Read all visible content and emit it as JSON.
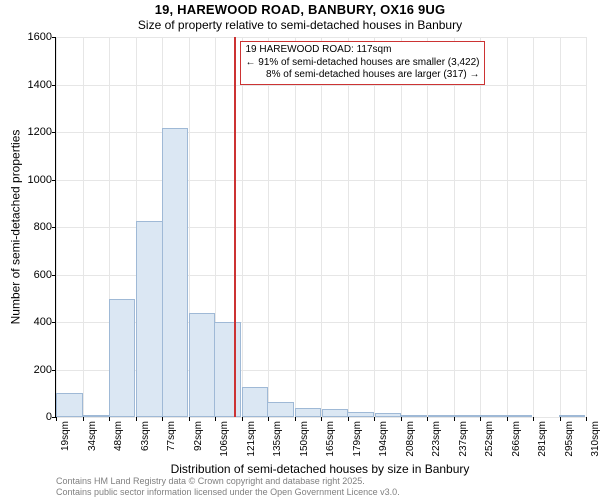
{
  "title_line1": "19, HAREWOOD ROAD, BANBURY, OX16 9UG",
  "title_line2": "Size of property relative to semi-detached houses in Banbury",
  "ylabel": "Number of semi-detached properties",
  "xlabel": "Distribution of semi-detached houses by size in Banbury",
  "footer_line1": "Contains HM Land Registry data © Crown copyright and database right 2025.",
  "footer_line2": "Contains public sector information licensed under the Open Government Licence v3.0.",
  "footer_color": "#808080",
  "chart": {
    "type": "histogram",
    "background_color": "#ffffff",
    "grid_color": "#e6e6e6",
    "axis_color": "#000000",
    "bar_color": "#dbe7f3",
    "bar_border_color": "#9fb9d6",
    "bar_border_width": 1,
    "marker_color": "#cc3333",
    "annotation_border_color": "#cc3333",
    "ylim": [
      0,
      1600
    ],
    "ytick_step": 200,
    "x_min": 19,
    "x_max": 310,
    "x_tick_step": 14.55,
    "x_tick_labels": [
      "19sqm",
      "34sqm",
      "48sqm",
      "63sqm",
      "77sqm",
      "92sqm",
      "106sqm",
      "121sqm",
      "135sqm",
      "150sqm",
      "165sqm",
      "179sqm",
      "194sqm",
      "208sqm",
      "223sqm",
      "237sqm",
      "252sqm",
      "266sqm",
      "281sqm",
      "295sqm",
      "310sqm"
    ],
    "bars": [
      {
        "x": 19,
        "value": 100
      },
      {
        "x": 34,
        "value": 10
      },
      {
        "x": 48,
        "value": 495
      },
      {
        "x": 63,
        "value": 825
      },
      {
        "x": 77,
        "value": 1215
      },
      {
        "x": 92,
        "value": 440
      },
      {
        "x": 106,
        "value": 400
      },
      {
        "x": 121,
        "value": 125
      },
      {
        "x": 135,
        "value": 65
      },
      {
        "x": 150,
        "value": 40
      },
      {
        "x": 165,
        "value": 35
      },
      {
        "x": 179,
        "value": 20
      },
      {
        "x": 194,
        "value": 15
      },
      {
        "x": 208,
        "value": 5
      },
      {
        "x": 223,
        "value": 5
      },
      {
        "x": 237,
        "value": 2
      },
      {
        "x": 252,
        "value": 2
      },
      {
        "x": 266,
        "value": 5
      },
      {
        "x": 281,
        "value": 0
      },
      {
        "x": 295,
        "value": 2
      }
    ],
    "bar_width_units": 14.55,
    "marker_x": 117,
    "annotation": {
      "line1": "19 HAREWOOD ROAD: 117sqm",
      "line2": "← 91% of semi-detached houses are smaller (3,422)",
      "line3": "8% of semi-detached houses are larger (317) →"
    },
    "title_fontsize": 13,
    "subtitle_fontsize": 12,
    "label_fontsize": 12,
    "tick_fontsize_y": 11,
    "tick_fontsize_x": 10,
    "annotation_fontsize": 10,
    "footer_fontsize": 9
  }
}
